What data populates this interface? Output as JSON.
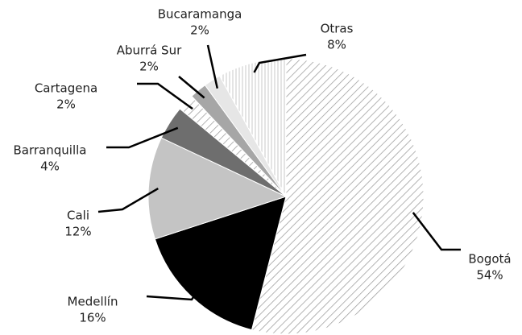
{
  "chart_data": {
    "type": "pie",
    "categories": [
      "Bogotá",
      "Medellín",
      "Cali",
      "Barranquilla",
      "Cartagena",
      "Aburrá Sur",
      "Bucaramanga",
      "Otras"
    ],
    "values": [
      54,
      16,
      12,
      4,
      2,
      2,
      2,
      8
    ],
    "value_labels": [
      "54%",
      "16%",
      "12%",
      "4%",
      "2%",
      "2%",
      "2%",
      "8%"
    ],
    "colors": [
      "#ffffff",
      "#000000",
      "#c4c4c4",
      "#6e6e6e",
      "#ffffff",
      "#a6a6a6",
      "#e6e6e6",
      "#ffffff"
    ],
    "patterns": [
      "diagonal",
      "solid",
      "solid",
      "solid",
      "diagonal",
      "solid",
      "solid",
      "vertical"
    ]
  }
}
